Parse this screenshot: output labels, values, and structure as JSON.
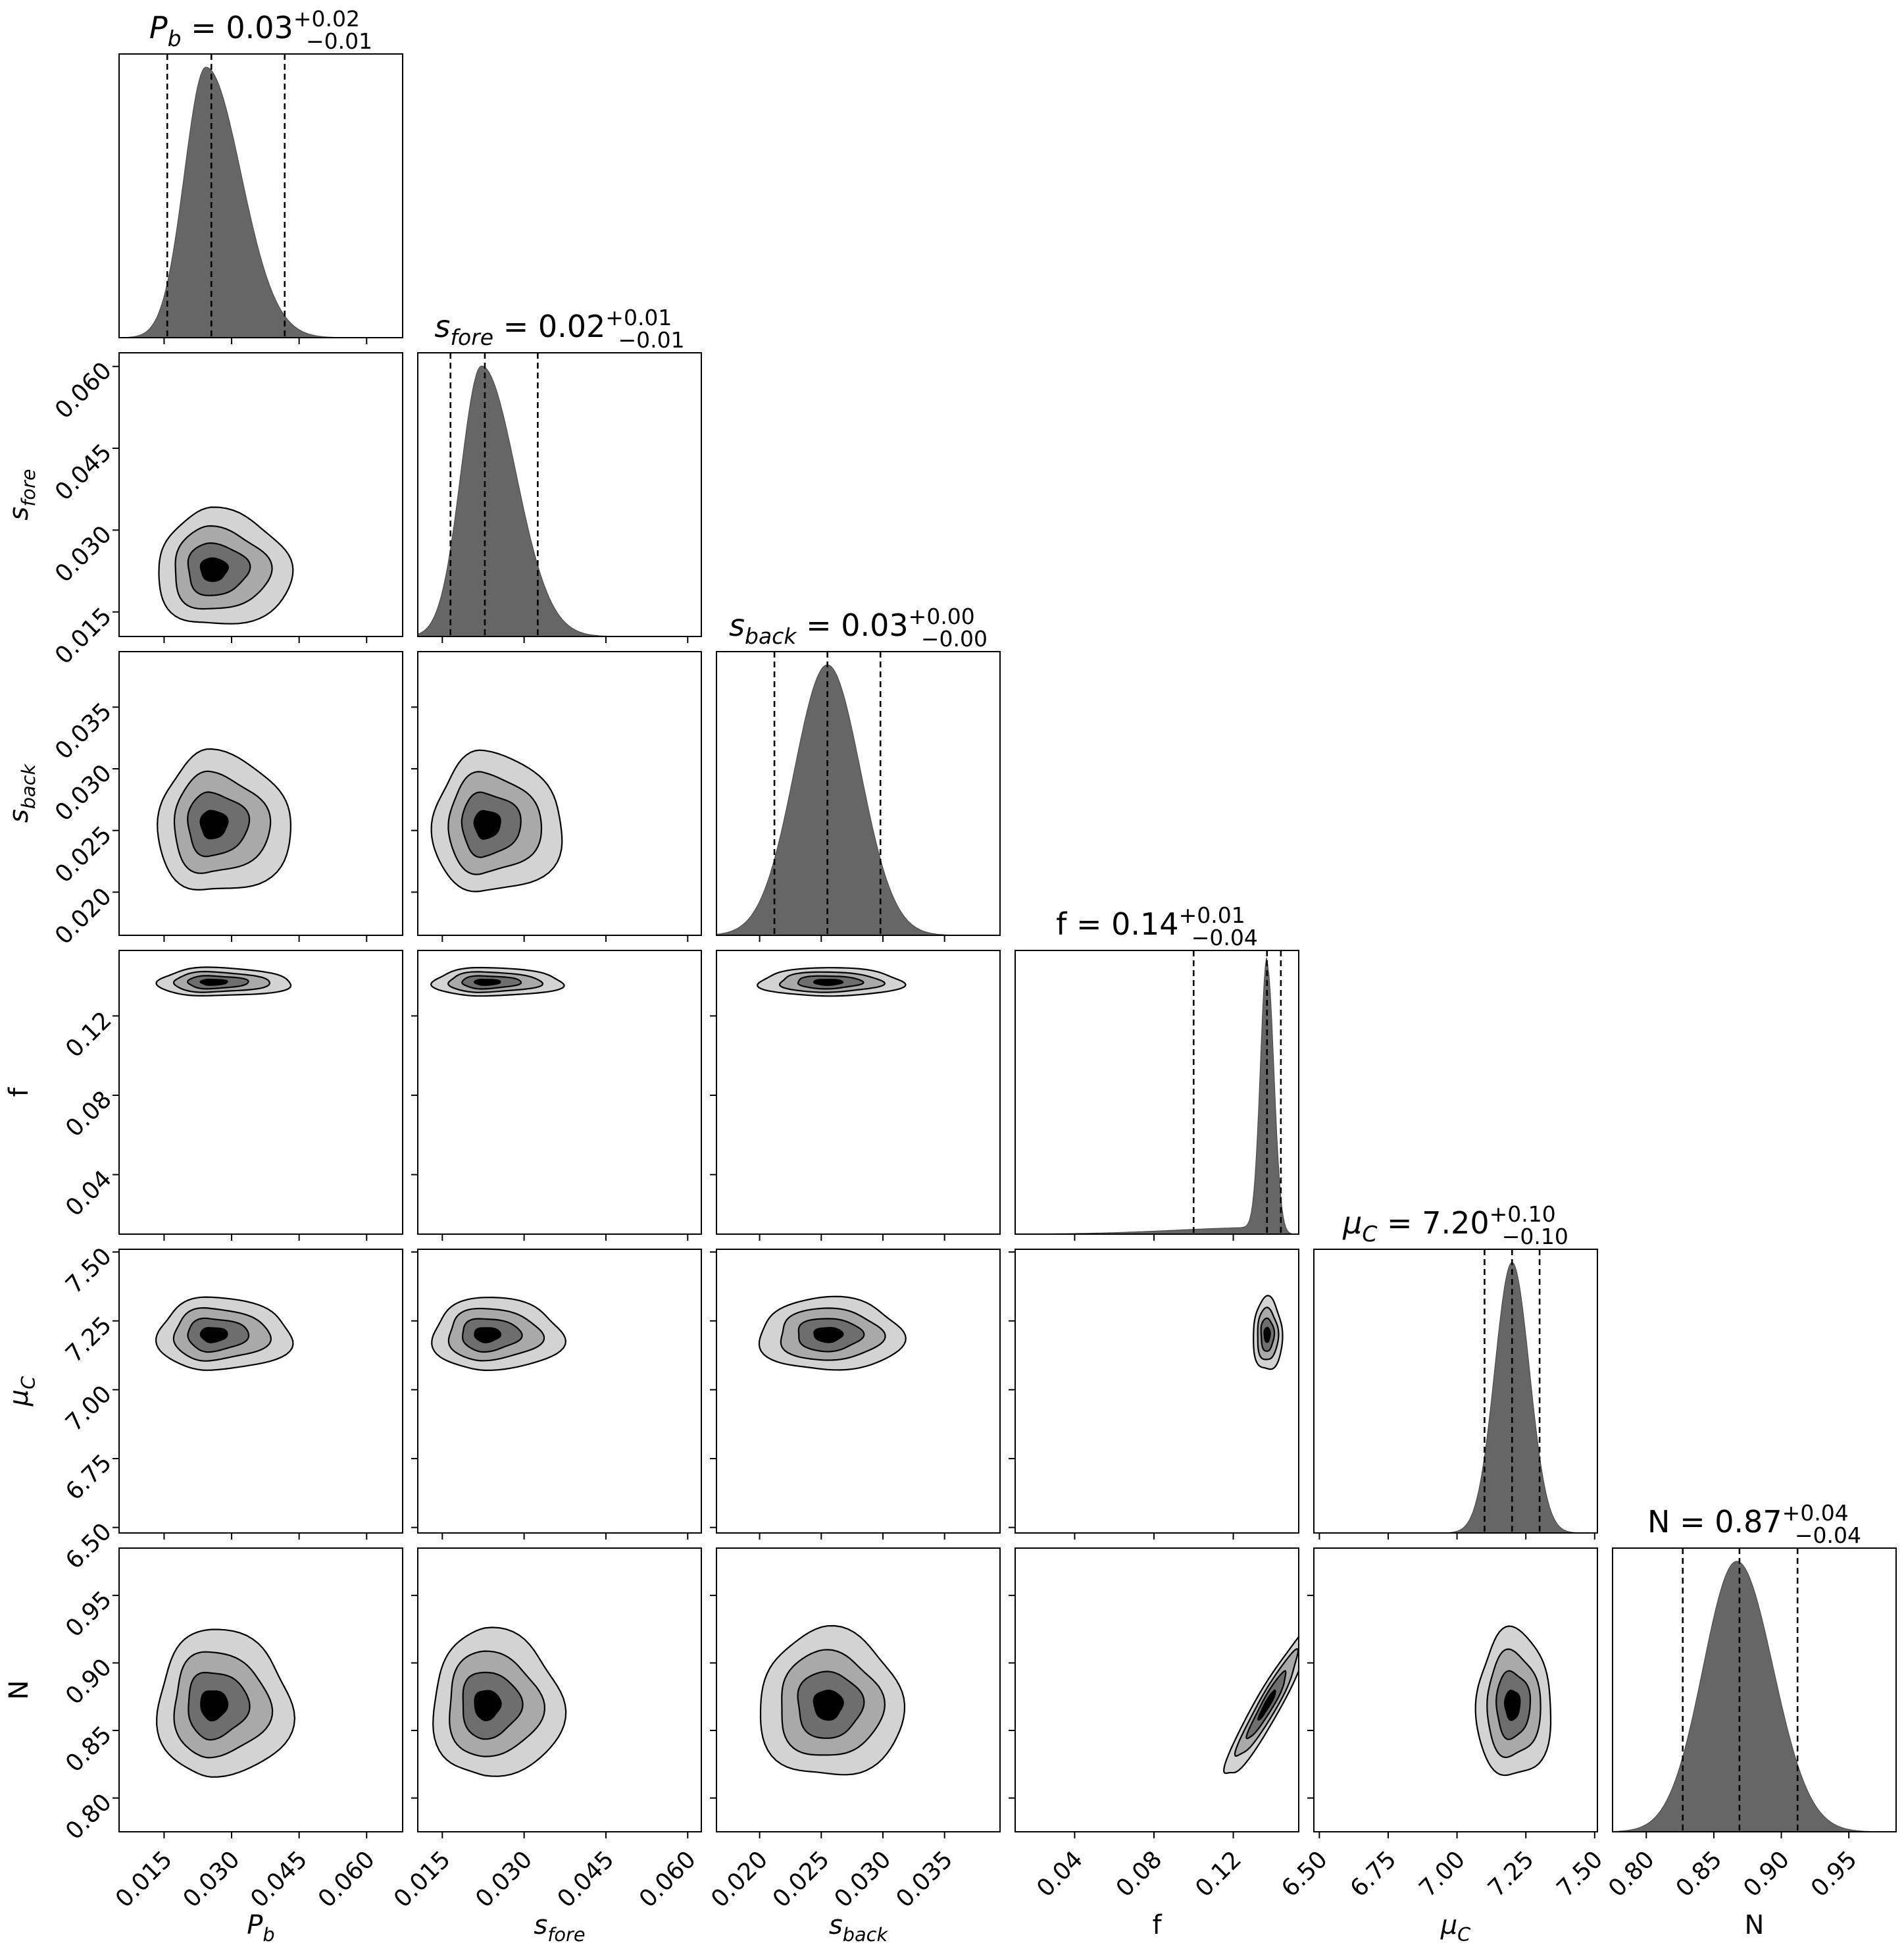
{
  "chart_data": {
    "type": "corner",
    "parameters": [
      {
        "key": "Pb",
        "label_base": "P",
        "label_sub": "b",
        "italic": true,
        "ticks": [
          "0.015",
          "0.030",
          "0.045",
          "0.060"
        ],
        "tick_values": [
          0.015,
          0.03,
          0.045,
          0.06
        ],
        "range": [
          0.005,
          0.068
        ],
        "title_prefix": " = ",
        "median": "0.03",
        "plus": "+0.02",
        "minus": "−0.01",
        "quantiles": [
          0.0157,
          0.0255,
          0.0418
        ],
        "peak": 0.0243,
        "sd_left": 0.0048,
        "sd_right": 0.0078
      },
      {
        "key": "s_fore",
        "label_base": "s",
        "label_sub": "fore",
        "italic": true,
        "ticks": [
          "0.015",
          "0.030",
          "0.045",
          "0.060"
        ],
        "tick_values": [
          0.015,
          0.03,
          0.045,
          0.06
        ],
        "range": [
          0.0105,
          0.0625
        ],
        "title_prefix": " = ",
        "median": "0.02",
        "plus": "+0.01",
        "minus": "−0.01",
        "quantiles": [
          0.0165,
          0.0228,
          0.0325
        ],
        "peak": 0.0222,
        "sd_left": 0.0038,
        "sd_right": 0.0063
      },
      {
        "key": "s_back",
        "label_base": "s",
        "label_sub": "back",
        "italic": true,
        "ticks": [
          "0.020",
          "0.025",
          "0.030",
          "0.035"
        ],
        "tick_values": [
          0.02,
          0.025,
          0.03,
          0.035
        ],
        "range": [
          0.0165,
          0.0395
        ],
        "title_prefix": " = ",
        "median": "0.03",
        "plus": "+0.00",
        "minus": "−0.00",
        "quantiles": [
          0.0212,
          0.0255,
          0.0298
        ],
        "peak": 0.0255,
        "sd_left": 0.0027,
        "sd_right": 0.0027
      },
      {
        "key": "f",
        "label_base": "f",
        "label_sub": "",
        "italic": false,
        "ticks": [
          "0.04",
          "0.08",
          "0.12"
        ],
        "tick_values": [
          0.04,
          0.08,
          0.12
        ],
        "range": [
          0.01,
          0.153
        ],
        "title_prefix": " = ",
        "median": "0.14",
        "plus": "+0.01",
        "minus": "−0.04",
        "quantiles": [
          0.1,
          0.137,
          0.144
        ],
        "peak": 0.137,
        "sd_left": 0.0033,
        "sd_right": 0.0035
      },
      {
        "key": "mu_C",
        "label_base": "μ",
        "label_sub": "C",
        "italic": true,
        "ticks": [
          "6.50",
          "6.75",
          "7.00",
          "7.25",
          "7.50"
        ],
        "tick_values": [
          6.5,
          6.75,
          7.0,
          7.25,
          7.5
        ],
        "range": [
          6.48,
          7.51
        ],
        "title_prefix": " = ",
        "median": "7.20",
        "plus": "+0.10",
        "minus": "−0.10",
        "quantiles": [
          7.1,
          7.2,
          7.3
        ],
        "peak": 7.2,
        "sd_left": 0.063,
        "sd_right": 0.063
      },
      {
        "key": "N",
        "label_base": "N",
        "label_sub": "",
        "italic": false,
        "ticks": [
          "0.80",
          "0.85",
          "0.90",
          "0.95"
        ],
        "tick_values": [
          0.8,
          0.85,
          0.9,
          0.95
        ],
        "range": [
          0.775,
          0.985
        ],
        "title_prefix": " = ",
        "median": "0.87",
        "plus": "+0.04",
        "minus": "−0.04",
        "quantiles": [
          0.827,
          0.869,
          0.912
        ],
        "peak": 0.867,
        "sd_left": 0.025,
        "sd_right": 0.027
      }
    ],
    "contour_levels": 4,
    "contour_fills": [
      "#d3d3d3",
      "#a9a9a9",
      "#6e6e6e",
      "#000000"
    ],
    "hist_color": "#666666"
  }
}
